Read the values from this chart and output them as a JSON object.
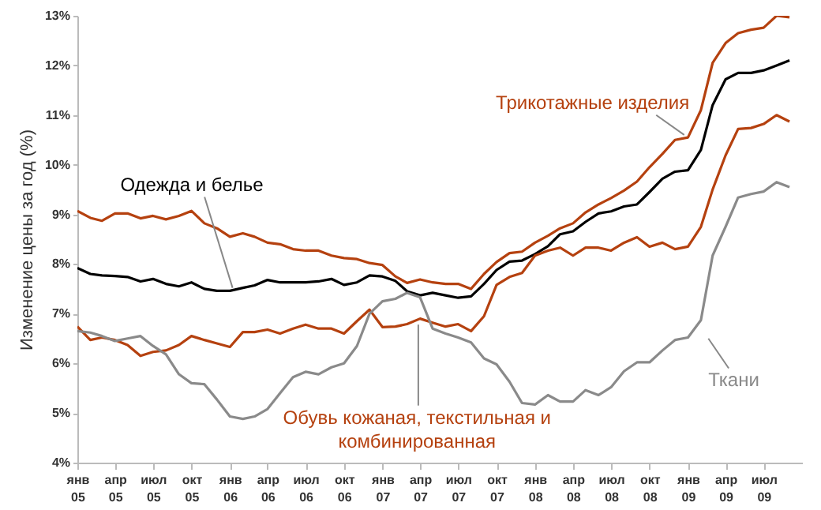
{
  "chart_data": {
    "type": "line",
    "ylabel": "Изменение цены за год (%)",
    "ylim": [
      4,
      13
    ],
    "yticks": [
      {
        "value": 4,
        "label": "4%"
      },
      {
        "value": 5,
        "label": "5%"
      },
      {
        "value": 6,
        "label": "6%"
      },
      {
        "value": 7,
        "label": "7%"
      },
      {
        "value": 8,
        "label": "8%"
      },
      {
        "value": 9,
        "label": "9%"
      },
      {
        "value": 10,
        "label": "10%"
      },
      {
        "value": 11,
        "label": "11%"
      },
      {
        "value": 12,
        "label": "12%"
      },
      {
        "value": 13,
        "label": "13%"
      }
    ],
    "xlim": [
      "2005-01",
      "2009-10"
    ],
    "xticks": [
      {
        "value": "2005-01",
        "label": "янв 05"
      },
      {
        "value": "2005-04",
        "label": "апр 05"
      },
      {
        "value": "2005-07",
        "label": "июл 05"
      },
      {
        "value": "2005-10",
        "label": "окт 05"
      },
      {
        "value": "2006-01",
        "label": "янв 06"
      },
      {
        "value": "2006-04",
        "label": "апр 06"
      },
      {
        "value": "2006-07",
        "label": "июл 06"
      },
      {
        "value": "2006-10",
        "label": "окт 06"
      },
      {
        "value": "2007-01",
        "label": "янв 07"
      },
      {
        "value": "2007-04",
        "label": "апр 07"
      },
      {
        "value": "2007-07",
        "label": "июл 07"
      },
      {
        "value": "2007-10",
        "label": "окт 07"
      },
      {
        "value": "2008-01",
        "label": "янв 08"
      },
      {
        "value": "2008-04",
        "label": "апр 08"
      },
      {
        "value": "2008-07",
        "label": "июл 08"
      },
      {
        "value": "2008-10",
        "label": "окт 08"
      },
      {
        "value": "2009-01",
        "label": "янв 09"
      },
      {
        "value": "2009-04",
        "label": "апр 09"
      },
      {
        "value": "2009-07",
        "label": "июл 09"
      }
    ],
    "x": [
      "2005-01",
      "2005-02",
      "2005-03",
      "2005-04",
      "2005-05",
      "2005-06",
      "2005-07",
      "2005-08",
      "2005-09",
      "2005-10",
      "2005-11",
      "2005-12",
      "2006-01",
      "2006-02",
      "2006-03",
      "2006-04",
      "2006-05",
      "2006-06",
      "2006-07",
      "2006-08",
      "2006-09",
      "2006-10",
      "2006-11",
      "2006-12",
      "2007-01",
      "2007-02",
      "2007-03",
      "2007-04",
      "2007-05",
      "2007-06",
      "2007-07",
      "2007-08",
      "2007-09",
      "2007-10",
      "2007-11",
      "2007-12",
      "2008-01",
      "2008-02",
      "2008-03",
      "2008-04",
      "2008-05",
      "2008-06",
      "2008-07",
      "2008-08",
      "2008-09",
      "2008-10",
      "2008-11",
      "2008-12",
      "2009-01",
      "2009-02",
      "2009-03",
      "2009-04",
      "2009-05",
      "2009-06",
      "2009-07",
      "2009-08",
      "2009-09"
    ],
    "series": [
      {
        "name": "Одежда и белье",
        "color": "#000000",
        "values": [
          7.92,
          7.8,
          7.77,
          7.76,
          7.74,
          7.65,
          7.7,
          7.6,
          7.55,
          7.63,
          7.5,
          7.46,
          7.46,
          7.52,
          7.57,
          7.68,
          7.63,
          7.63,
          7.63,
          7.65,
          7.7,
          7.58,
          7.63,
          7.77,
          7.75,
          7.66,
          7.45,
          7.37,
          7.42,
          7.37,
          7.32,
          7.35,
          7.6,
          7.88,
          8.05,
          8.07,
          8.2,
          8.36,
          8.6,
          8.66,
          8.85,
          9.02,
          9.06,
          9.16,
          9.2,
          9.45,
          9.72,
          9.86,
          9.89,
          10.3,
          11.2,
          11.72,
          11.85,
          11.85,
          11.9,
          12.0,
          12.1
        ]
      },
      {
        "name": "Трикотажные изделия",
        "color": "#b5410f",
        "values": [
          9.07,
          8.93,
          8.87,
          9.02,
          9.02,
          8.92,
          8.97,
          8.9,
          8.97,
          9.07,
          8.82,
          8.72,
          8.55,
          8.62,
          8.55,
          8.43,
          8.4,
          8.3,
          8.27,
          8.27,
          8.17,
          8.12,
          8.1,
          8.02,
          7.98,
          7.75,
          7.62,
          7.69,
          7.63,
          7.6,
          7.6,
          7.5,
          7.8,
          8.04,
          8.22,
          8.25,
          8.43,
          8.57,
          8.72,
          8.82,
          9.04,
          9.2,
          9.33,
          9.48,
          9.66,
          9.95,
          10.22,
          10.5,
          10.55,
          11.1,
          12.05,
          12.45,
          12.65,
          12.72,
          12.76,
          13.0,
          12.97
        ]
      },
      {
        "name": "Обувь кожаная, текстильная и комбинированная",
        "color": "#b5410f",
        "values": [
          6.74,
          6.47,
          6.52,
          6.47,
          6.37,
          6.15,
          6.23,
          6.26,
          6.37,
          6.55,
          6.47,
          6.4,
          6.33,
          6.63,
          6.63,
          6.68,
          6.6,
          6.7,
          6.78,
          6.7,
          6.7,
          6.6,
          6.85,
          7.08,
          6.73,
          6.74,
          6.79,
          6.9,
          6.82,
          6.74,
          6.79,
          6.65,
          6.95,
          7.58,
          7.74,
          7.82,
          8.17,
          8.27,
          8.33,
          8.17,
          8.33,
          8.33,
          8.27,
          8.43,
          8.54,
          8.35,
          8.43,
          8.3,
          8.35,
          8.75,
          9.5,
          10.19,
          10.72,
          10.74,
          10.82,
          11.0,
          10.87
        ]
      },
      {
        "name": "Ткани",
        "color": "#8a8a8a",
        "values": [
          6.65,
          6.62,
          6.55,
          6.45,
          6.5,
          6.55,
          6.35,
          6.18,
          5.78,
          5.6,
          5.58,
          5.27,
          4.93,
          4.88,
          4.93,
          5.08,
          5.4,
          5.72,
          5.83,
          5.78,
          5.92,
          6.0,
          6.35,
          7.0,
          7.25,
          7.3,
          7.42,
          7.33,
          6.7,
          6.6,
          6.52,
          6.42,
          6.1,
          5.98,
          5.63,
          5.2,
          5.17,
          5.36,
          5.23,
          5.23,
          5.46,
          5.36,
          5.52,
          5.84,
          6.02,
          6.02,
          6.26,
          6.47,
          6.52,
          6.87,
          8.17,
          8.75,
          9.34,
          9.41,
          9.46,
          9.65,
          9.55
        ]
      }
    ]
  }
}
